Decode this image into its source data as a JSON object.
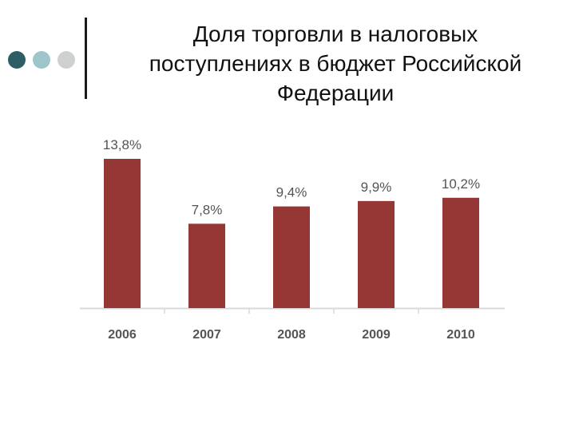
{
  "slide": {
    "title_lines": [
      "Доля торговли в налоговых",
      "поступлениях в бюджет Российской",
      "Федерации"
    ]
  },
  "decor": {
    "dot_colors": [
      "#2e5d66",
      "#9ec5c9",
      "#cfd1d1"
    ]
  },
  "chart_data": {
    "type": "bar",
    "categories": [
      "2006",
      "2007",
      "2008",
      "2009",
      "2010"
    ],
    "values": [
      13.8,
      7.8,
      9.4,
      9.9,
      10.2
    ],
    "data_labels": [
      "13,8%",
      "7,8%",
      "9,4%",
      "9,9%",
      "10,2%"
    ],
    "ylim": [
      0,
      14
    ],
    "grid": false,
    "bar_color": "#953735",
    "axis_color": "#d9d9d9"
  }
}
